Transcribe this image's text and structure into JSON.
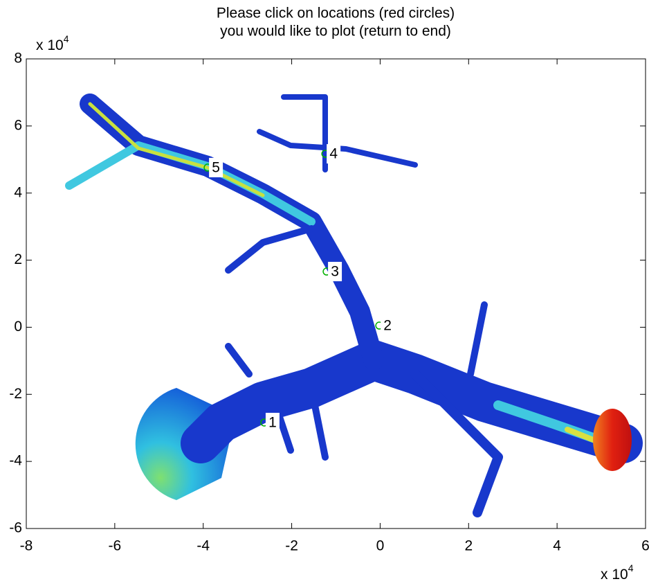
{
  "chart_data": {
    "type": "scatter",
    "title": [
      "Please click on locations (red circles)",
      "you would like to plot (return to end)"
    ],
    "x_multiplier": {
      "base": "x 10",
      "power": "4"
    },
    "y_multiplier": {
      "base": "x 10",
      "power": "4"
    },
    "xlim": [
      -8,
      6
    ],
    "xticks": [
      -8,
      -6,
      -4,
      -2,
      0,
      2,
      4,
      6
    ],
    "ylim": [
      -6,
      8
    ],
    "yticks": [
      -6,
      -4,
      -2,
      0,
      2,
      4,
      6,
      8
    ],
    "series": [
      {
        "color": "#00b000",
        "x": [
          -2.62,
          -0.02,
          -1.21,
          -1.24,
          -3.9
        ],
        "values": [
          -2.84,
          0.05,
          1.66,
          5.17,
          4.76
        ],
        "labels": [
          "1",
          "2",
          "3",
          "4",
          "5"
        ]
      }
    ]
  }
}
